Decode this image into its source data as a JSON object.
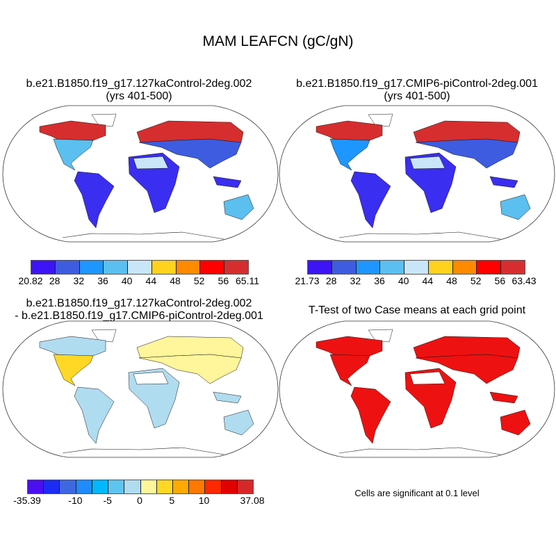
{
  "title": "MAM LEAFCN (gC/gN)",
  "panels": [
    {
      "title_line1": "b.e21.B1850.f19_g17.127kaControl-2deg.002",
      "title_line2": "(yrs 401-500)",
      "fills": {
        "na_north": "#d62e2e",
        "na_south": "#5bbff0",
        "greenland": "#ffffff",
        "samerica": "#3a2ef0",
        "eurasia_north": "#d62e2e",
        "eurasia_south": "#3d5ce0",
        "africa": "#3a2ef0",
        "sahara": "#c8e6f8",
        "australia": "#5bbff0",
        "seasia": "#3a2ef0"
      }
    },
    {
      "title_line1": "b.e21.B1850.f19_g17.CMIP6-piControl-2deg.001",
      "title_line2": "(yrs 401-500)",
      "fills": {
        "na_north": "#d62e2e",
        "na_south": "#1e96ff",
        "greenland": "#ffffff",
        "samerica": "#3a2ef0",
        "eurasia_north": "#d62e2e",
        "eurasia_south": "#3d5ce0",
        "africa": "#3a2ef0",
        "sahara": "#c8e6f8",
        "australia": "#5bbff0",
        "seasia": "#3a2ef0"
      }
    },
    {
      "title_line1": "b.e21.B1850.f19_g17.127kaControl-2deg.002",
      "title_line2": "- b.e21.B1850.f19_g17.CMIP6-piControl-2deg.001",
      "fills": {
        "na_north": "#b0dcf0",
        "na_south": "#ffd826",
        "greenland": "#ffffff",
        "samerica": "#b0dcf0",
        "eurasia_north": "#fff59a",
        "eurasia_south": "#fff59a",
        "africa": "#b0dcf0",
        "sahara": "#ffffff",
        "australia": "#b0dcf0",
        "seasia": "#b0dcf0"
      }
    },
    {
      "title_line1": "T-Test of two Case means at each grid point",
      "title_line2": "",
      "fills": {
        "na_north": "#ee1111",
        "na_south": "#ee1111",
        "greenland": "#ffffff",
        "samerica": "#ee1111",
        "eurasia_north": "#ee1111",
        "eurasia_south": "#ee1111",
        "africa": "#ee1111",
        "sahara": "#ffffff",
        "australia": "#ee1111",
        "seasia": "#ee1111"
      }
    }
  ],
  "colorbars": [
    {
      "colors": [
        "#3d14f5",
        "#3d5ce0",
        "#1e96ff",
        "#5bbff0",
        "#c8e6f8",
        "#ffd21e",
        "#ff8a00",
        "#ff0000",
        "#d62e2e"
      ],
      "labels": [
        "20.82",
        "28",
        "32",
        "36",
        "40",
        "44",
        "48",
        "52",
        "56",
        "65.11"
      ]
    },
    {
      "colors": [
        "#3d14f5",
        "#3d5ce0",
        "#1e96ff",
        "#5bbff0",
        "#c8e6f8",
        "#ffd21e",
        "#ff8a00",
        "#ff0000",
        "#d62e2e"
      ],
      "labels": [
        "21.73",
        "28",
        "32",
        "36",
        "40",
        "44",
        "48",
        "52",
        "56",
        "63.43"
      ]
    },
    {
      "colors": [
        "#4a10f0",
        "#1c2cf5",
        "#3e68e0",
        "#1e8cff",
        "#00b8ff",
        "#5ec4f0",
        "#b0dcf0",
        "#fff59a",
        "#ffd826",
        "#ffaa00",
        "#ff7800",
        "#ff2800",
        "#e00000",
        "#d62828"
      ],
      "labels": [
        "-35.39",
        "-10",
        "-5",
        "0",
        "5",
        "10",
        "37.08"
      ]
    }
  ],
  "significance_note": "Cells are significant at 0.1 level"
}
